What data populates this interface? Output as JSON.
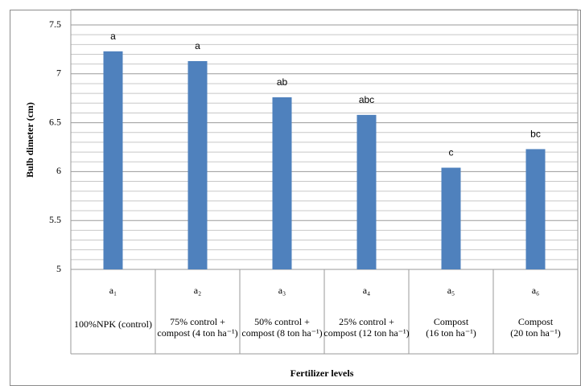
{
  "chart_data": {
    "type": "bar",
    "y_label": "Bulb dimeter (cm)",
    "x_label": "Fertilizer levels",
    "categories": [
      "a₁",
      "a₂",
      "a₃",
      "a₄",
      "a₅",
      "a₆"
    ],
    "descriptions": [
      [
        "100%NPK (control)"
      ],
      [
        "75% control +",
        "compost (4 ton ha⁻¹)"
      ],
      [
        "50% control +",
        "compost (8 ton ha⁻¹)"
      ],
      [
        "25% control +",
        "compost (12 ton ha⁻¹)"
      ],
      [
        "Compost",
        "(16 ton ha⁻¹)"
      ],
      [
        "Compost",
        "(20 ton ha⁻¹)"
      ]
    ],
    "values": [
      7.23,
      7.13,
      6.76,
      6.58,
      6.04,
      6.23
    ],
    "annotations": [
      "a",
      "a",
      "ab",
      "abc",
      "c",
      "bc"
    ],
    "color": "#4f81bd",
    "ylim": [
      5,
      7.5
    ],
    "yticks": [
      5,
      5.5,
      6,
      6.5,
      7,
      7.5
    ],
    "grid": true
  }
}
